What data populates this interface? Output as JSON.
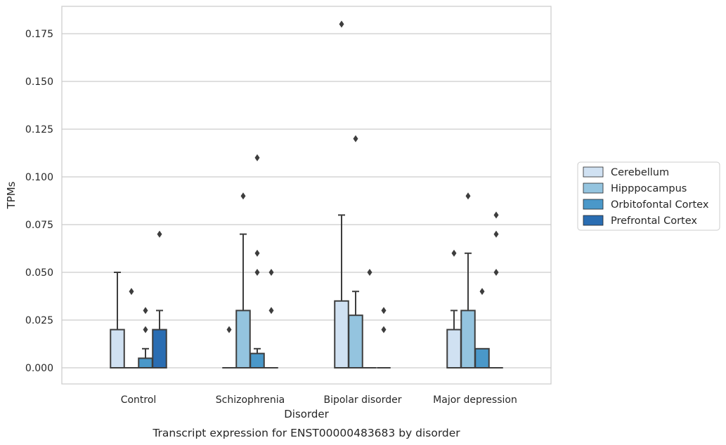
{
  "chart_data": {
    "type": "box",
    "title": "",
    "caption": "Transcript expression for ENST00000483683 by disorder",
    "xlabel": "Disorder",
    "ylabel": "TPMs",
    "ylim": [
      -0.009,
      0.19
    ],
    "yticks": [
      "0.000",
      "0.025",
      "0.050",
      "0.075",
      "0.100",
      "0.125",
      "0.150",
      "0.175"
    ],
    "grid": "horizontal",
    "legend_position": "right",
    "categories": [
      "Control",
      "Schizophrenia",
      "Bipolar disorder",
      "Major depression"
    ],
    "series": [
      {
        "name": "Cerebellum",
        "color": "#d0e1f2",
        "boxes": [
          {
            "q1": 0.0,
            "median": 0.0,
            "q3": 0.02,
            "whisker_low": 0.0,
            "whisker_high": 0.05,
            "outliers": []
          },
          {
            "q1": 0.0,
            "median": 0.0,
            "q3": 0.0,
            "whisker_low": 0.0,
            "whisker_high": 0.0,
            "outliers": [
              0.02
            ]
          },
          {
            "q1": 0.0,
            "median": 0.0,
            "q3": 0.035,
            "whisker_low": 0.0,
            "whisker_high": 0.08,
            "outliers": [
              0.18
            ]
          },
          {
            "q1": 0.0,
            "median": 0.0,
            "q3": 0.02,
            "whisker_low": 0.0,
            "whisker_high": 0.03,
            "outliers": [
              0.06
            ]
          }
        ]
      },
      {
        "name": "Hipppocampus",
        "color": "#94c4df",
        "boxes": [
          {
            "q1": 0.0,
            "median": 0.0,
            "q3": 0.0,
            "whisker_low": 0.0,
            "whisker_high": 0.0,
            "outliers": [
              0.04
            ]
          },
          {
            "q1": 0.0,
            "median": 0.0,
            "q3": 0.03,
            "whisker_low": 0.0,
            "whisker_high": 0.07,
            "outliers": [
              0.09
            ]
          },
          {
            "q1": 0.0,
            "median": 0.0,
            "q3": 0.0275,
            "whisker_low": 0.0,
            "whisker_high": 0.04,
            "outliers": [
              0.12
            ]
          },
          {
            "q1": 0.0,
            "median": 0.0,
            "q3": 0.03,
            "whisker_low": 0.0,
            "whisker_high": 0.06,
            "outliers": [
              0.09
            ]
          }
        ]
      },
      {
        "name": "Orbitofontal Cortex",
        "color": "#4a98c9",
        "boxes": [
          {
            "q1": 0.0,
            "median": 0.0,
            "q3": 0.005,
            "whisker_low": 0.0,
            "whisker_high": 0.01,
            "outliers": [
              0.02,
              0.03
            ]
          },
          {
            "q1": 0.0,
            "median": 0.0,
            "q3": 0.0075,
            "whisker_low": 0.0,
            "whisker_high": 0.01,
            "outliers": [
              0.05,
              0.06,
              0.11
            ]
          },
          {
            "q1": 0.0,
            "median": 0.0,
            "q3": 0.0,
            "whisker_low": 0.0,
            "whisker_high": 0.0,
            "outliers": [
              0.05
            ]
          },
          {
            "q1": 0.0,
            "median": 0.0,
            "q3": 0.01,
            "whisker_low": 0.0,
            "whisker_high": 0.01,
            "outliers": [
              0.04
            ]
          }
        ]
      },
      {
        "name": "Prefrontal Cortex",
        "color": "#2a6db2",
        "boxes": [
          {
            "q1": 0.0,
            "median": 0.0,
            "q3": 0.02,
            "whisker_low": 0.0,
            "whisker_high": 0.03,
            "outliers": [
              0.07
            ]
          },
          {
            "q1": 0.0,
            "median": 0.0,
            "q3": 0.0,
            "whisker_low": 0.0,
            "whisker_high": 0.0,
            "outliers": [
              0.03,
              0.05
            ]
          },
          {
            "q1": 0.0,
            "median": 0.0,
            "q3": 0.0,
            "whisker_low": 0.0,
            "whisker_high": 0.0,
            "outliers": [
              0.02,
              0.03
            ]
          },
          {
            "q1": 0.0,
            "median": 0.0,
            "q3": 0.0,
            "whisker_low": 0.0,
            "whisker_high": 0.0,
            "outliers": [
              0.05,
              0.07,
              0.08
            ]
          }
        ]
      }
    ]
  }
}
